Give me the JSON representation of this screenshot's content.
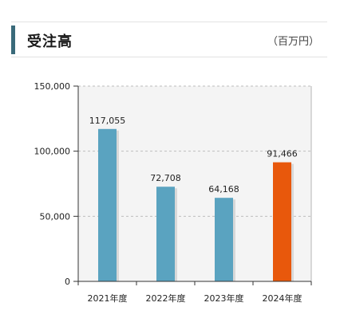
{
  "header": {
    "title": "受注高",
    "unit": "（百万円）",
    "accent_color": "#3a6a7a"
  },
  "chart_data": {
    "type": "bar",
    "categories": [
      "2021年度",
      "2022年度",
      "2023年度",
      "2024年度"
    ],
    "values": [
      117055,
      72708,
      64168,
      91466
    ],
    "value_labels": [
      "117,055",
      "72,708",
      "64,168",
      "91,466"
    ],
    "yticks": [
      0,
      50000,
      100000,
      150000
    ],
    "ytick_labels": [
      "0",
      "50,000",
      "100,000",
      "150,000"
    ],
    "ylim": [
      0,
      150000
    ],
    "grid": true,
    "bar_colors": [
      "#5aa3c0",
      "#5aa3c0",
      "#5aa3c0",
      "#e8580c"
    ],
    "plot_background": "#f4f4f4"
  }
}
